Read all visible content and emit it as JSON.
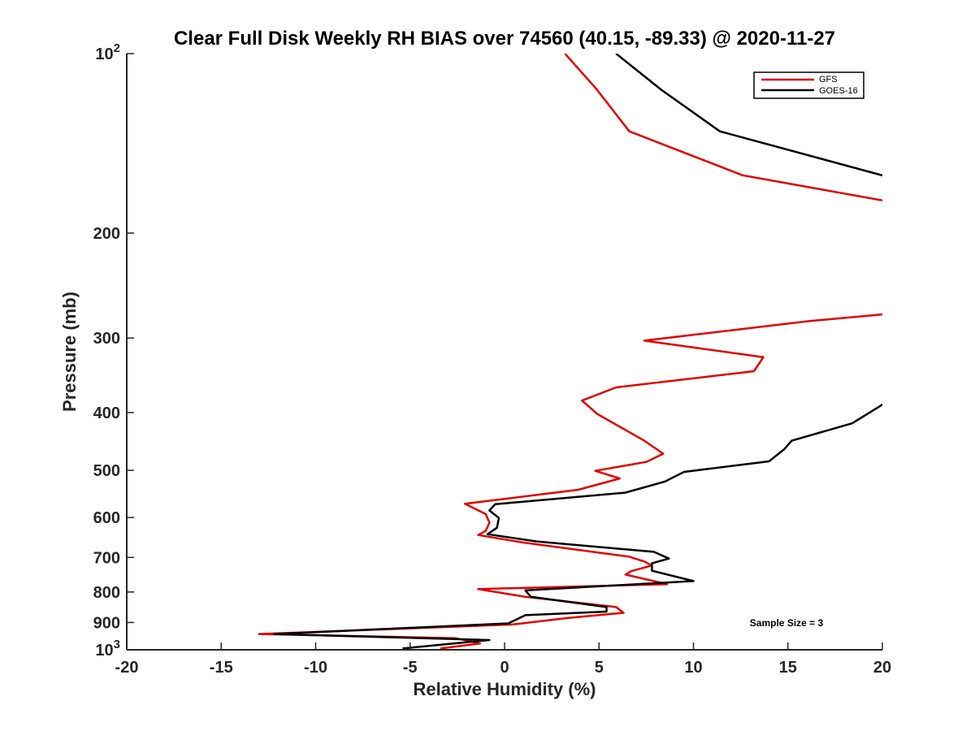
{
  "chart_data": {
    "type": "line",
    "title": "Clear Full Disk Weekly RH BIAS over 74560 (40.15, -89.33) @ 2020-11-27",
    "xlabel": "Relative Humidity (%)",
    "ylabel": "Pressure (mb)",
    "xlim": [
      -20,
      20
    ],
    "ylim": [
      100,
      1000
    ],
    "yscale": "log",
    "y_reversed": true,
    "grid": false,
    "legend_position": "top-right",
    "x_ticks": [
      {
        "value": -20,
        "label": "-20"
      },
      {
        "value": -15,
        "label": "-15"
      },
      {
        "value": -10,
        "label": "-10"
      },
      {
        "value": -5,
        "label": "-5"
      },
      {
        "value": 0,
        "label": "0"
      },
      {
        "value": 5,
        "label": "5"
      },
      {
        "value": 10,
        "label": "10"
      },
      {
        "value": 15,
        "label": "15"
      },
      {
        "value": 20,
        "label": "20"
      }
    ],
    "y_ticks": [
      {
        "value": 100,
        "base": "10",
        "exp": "2"
      },
      {
        "value": 200,
        "label": "200"
      },
      {
        "value": 300,
        "label": "300"
      },
      {
        "value": 400,
        "label": "400"
      },
      {
        "value": 500,
        "label": "500"
      },
      {
        "value": 600,
        "label": "600"
      },
      {
        "value": 700,
        "label": "700"
      },
      {
        "value": 800,
        "label": "800"
      },
      {
        "value": 900,
        "label": "900"
      },
      {
        "value": 1000,
        "base": "10",
        "exp": "3"
      }
    ],
    "series": [
      {
        "name": "GFS",
        "color": "#e00000",
        "points": [
          [
            3.2,
            100
          ],
          [
            4.9,
            115
          ],
          [
            6.6,
            135
          ],
          [
            12.6,
            160
          ],
          [
            20.3,
            177
          ],
          [
            21,
            272
          ],
          [
            16.1,
            281
          ],
          [
            7.4,
            303
          ],
          [
            13.7,
            323
          ],
          [
            13.2,
            341
          ],
          [
            5.9,
            363
          ],
          [
            4.1,
            382
          ],
          [
            4.9,
            402
          ],
          [
            7.4,
            446
          ],
          [
            8.4,
            469
          ],
          [
            7.5,
            484
          ],
          [
            4.8,
            501
          ],
          [
            6.1,
            516
          ],
          [
            3.9,
            539
          ],
          [
            -2.1,
            569
          ],
          [
            -1.0,
            592
          ],
          [
            -0.8,
            612
          ],
          [
            -1.0,
            632
          ],
          [
            -1.4,
            642
          ],
          [
            1.0,
            661
          ],
          [
            6.6,
            698
          ],
          [
            7.4,
            711
          ],
          [
            7.8,
            722
          ],
          [
            6.7,
            738
          ],
          [
            6.4,
            748
          ],
          [
            8.6,
            776
          ],
          [
            -1.4,
            791
          ],
          [
            1.1,
            815
          ],
          [
            5.9,
            848
          ],
          [
            6.3,
            867
          ],
          [
            3.4,
            884
          ],
          [
            0.4,
            907
          ],
          [
            -13.0,
            941
          ],
          [
            -2.6,
            956
          ],
          [
            -1.3,
            976
          ],
          [
            -3.4,
            995
          ]
        ]
      },
      {
        "name": "GOES-16",
        "color": "#000000",
        "points": [
          [
            5.9,
            100
          ],
          [
            8.3,
            115
          ],
          [
            11.4,
            135
          ],
          [
            20.3,
            161
          ],
          [
            21,
            163
          ],
          [
            21,
            372
          ],
          [
            20,
            388
          ],
          [
            18.4,
            417
          ],
          [
            15.2,
            446
          ],
          [
            14.8,
            461
          ],
          [
            14.0,
            483
          ],
          [
            9.5,
            503
          ],
          [
            8.5,
            522
          ],
          [
            6.4,
            545
          ],
          [
            -0.5,
            570
          ],
          [
            -0.8,
            584
          ],
          [
            -0.3,
            601
          ],
          [
            -0.4,
            624
          ],
          [
            -0.9,
            640
          ],
          [
            1.7,
            658
          ],
          [
            7.9,
            685
          ],
          [
            8.7,
            703
          ],
          [
            7.8,
            716
          ],
          [
            7.8,
            737
          ],
          [
            10.0,
            767
          ],
          [
            1.1,
            795
          ],
          [
            1.4,
            815
          ],
          [
            5.4,
            848
          ],
          [
            5.4,
            863
          ],
          [
            1.1,
            875
          ],
          [
            0.2,
            903
          ],
          [
            -12.2,
            941
          ],
          [
            -0.8,
            963
          ],
          [
            -5.4,
            995
          ]
        ]
      }
    ],
    "annotations": [
      {
        "text": "Sample Size = 3",
        "x": 14.8,
        "y": 918
      }
    ]
  }
}
